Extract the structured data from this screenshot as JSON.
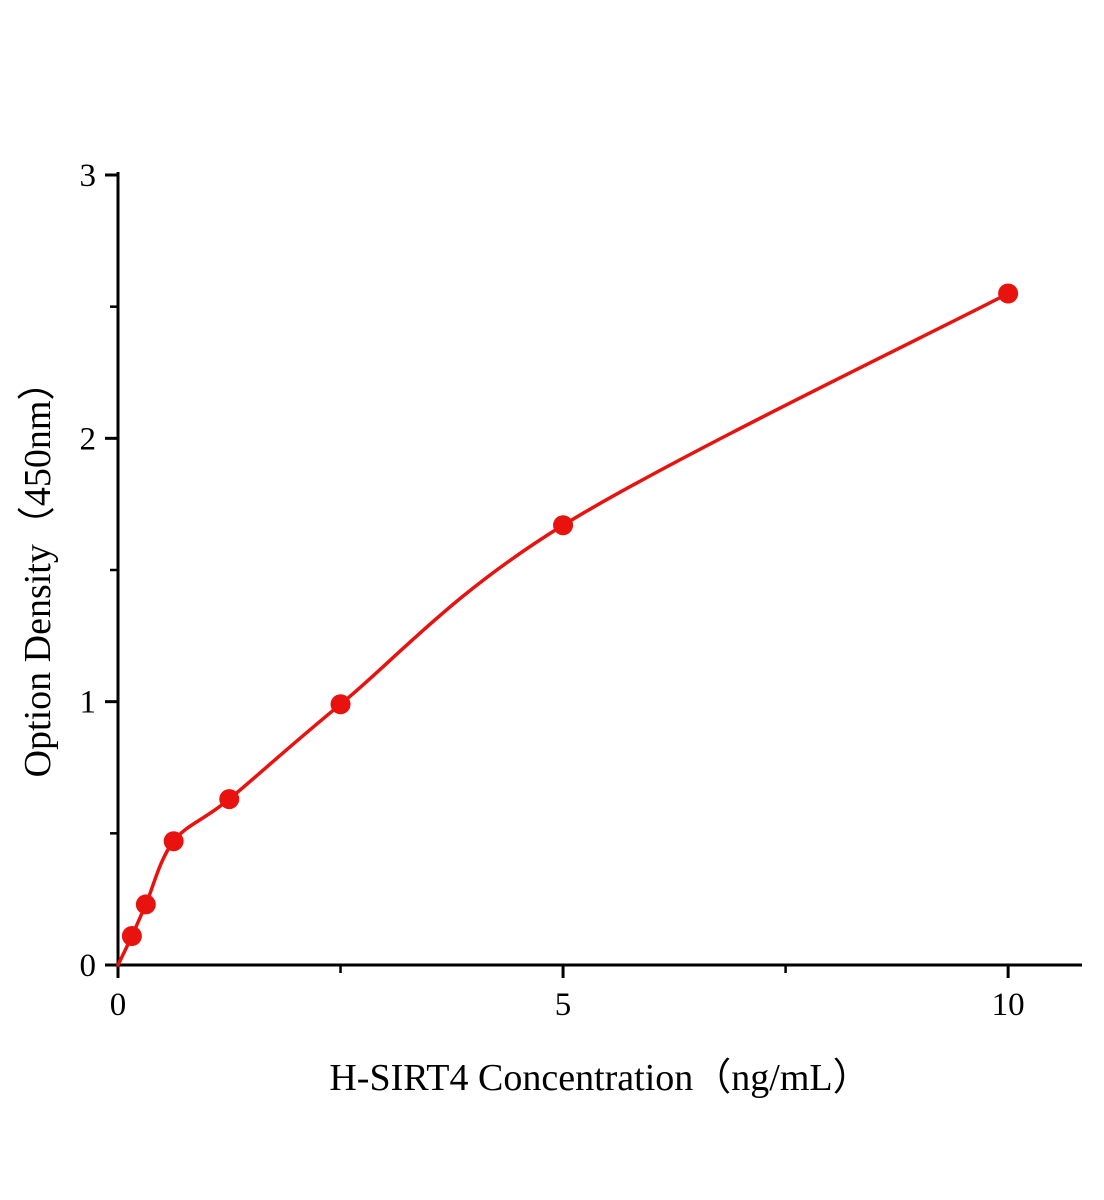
{
  "chart_data": {
    "type": "scatter",
    "title": "",
    "xlabel": "H-SIRT4 Concentration（ng/mL）",
    "ylabel": "Option Density（450nm）",
    "points": {
      "x": [
        0.156,
        0.3125,
        0.625,
        1.25,
        2.5,
        5,
        10
      ],
      "y": [
        0.11,
        0.23,
        0.47,
        0.63,
        0.99,
        1.67,
        2.55
      ]
    },
    "fit_curve": {
      "x": [
        0,
        0.156,
        0.3125,
        0.625,
        1.25,
        2.5,
        5,
        10
      ],
      "y": [
        0,
        0.11,
        0.23,
        0.47,
        0.63,
        0.99,
        1.67,
        2.55
      ]
    },
    "xlim": [
      0,
      10.83
    ],
    "ylim": [
      0,
      3
    ],
    "xticks": {
      "values": [
        0,
        5,
        10
      ],
      "labels": [
        "0",
        "5",
        "10"
      ]
    },
    "yticks": {
      "values": [
        0,
        1,
        2,
        3
      ],
      "labels": [
        "0",
        "1",
        "2",
        "3"
      ]
    },
    "x_minor_ticks": [
      2.5,
      7.5
    ],
    "y_minor_ticks": [
      0.5,
      1.5,
      2.5
    ],
    "grid": false,
    "legend": null,
    "colors": {
      "curve": "#e8120f",
      "marker": "#e8120f",
      "axis": "#000000"
    },
    "marker_radius": 10,
    "curve_width": 3.5,
    "axis_width": 3
  }
}
